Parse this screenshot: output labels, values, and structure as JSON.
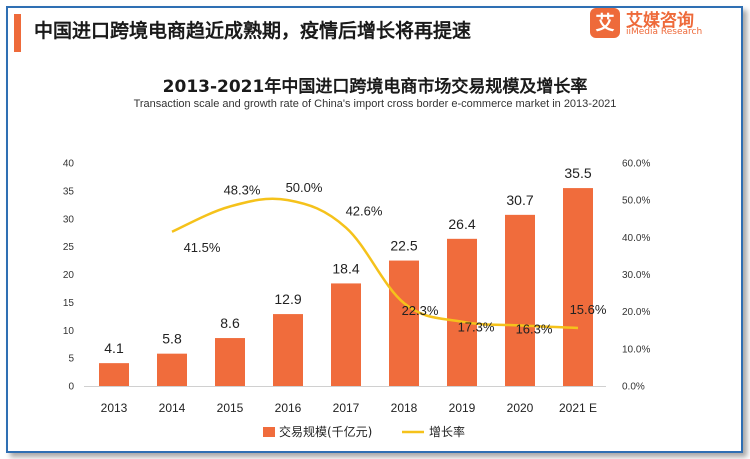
{
  "header": {
    "title": "中国进口跨境电商趋近成熟期，疫情后增长将再提速"
  },
  "logo": {
    "mark": "艾",
    "name_cn": "艾媒咨询",
    "name_en": "iiMedia Research"
  },
  "colors": {
    "accent": "#ee6a3a",
    "bar": "#f06c3c",
    "line": "#f5c21b",
    "border": "#2f6fb3"
  },
  "chart_data": {
    "type": "bar",
    "title": "2013-2021年中国进口跨境电商市场交易规模及增长率",
    "subtitle": "Transaction scale and growth rate of China's import cross border e-commerce market in 2013-2021",
    "categories": [
      "2013",
      "2014",
      "2015",
      "2016",
      "2017",
      "2018",
      "2019",
      "2020",
      "2021 E"
    ],
    "series": [
      {
        "name": "交易规模(千亿元)",
        "type": "bar",
        "axis": "left",
        "values": [
          4.1,
          5.8,
          8.6,
          12.9,
          18.4,
          22.5,
          26.4,
          30.7,
          35.5
        ],
        "labels": [
          "4.1",
          "5.8",
          "8.6",
          "12.9",
          "18.4",
          "22.5",
          "26.4",
          "30.7",
          "35.5"
        ]
      },
      {
        "name": "增长率",
        "type": "line",
        "axis": "right",
        "values": [
          null,
          41.5,
          48.3,
          50.0,
          42.6,
          22.3,
          17.3,
          16.3,
          15.6
        ],
        "labels": [
          "",
          "41.5%",
          "48.3%",
          "50.0%",
          "42.6%",
          "22.3%",
          "17.3%",
          "16.3%",
          "15.6%"
        ]
      }
    ],
    "y_left": {
      "min": 0,
      "max": 40,
      "ticks": [
        "0",
        "5",
        "10",
        "15",
        "20",
        "25",
        "30",
        "35",
        "40"
      ]
    },
    "y_right": {
      "min": 0,
      "max": 60,
      "ticks": [
        "0.0%",
        "10.0%",
        "20.0%",
        "30.0%",
        "40.0%",
        "50.0%",
        "60.0%"
      ]
    },
    "grid": false,
    "legend": "bottom"
  }
}
